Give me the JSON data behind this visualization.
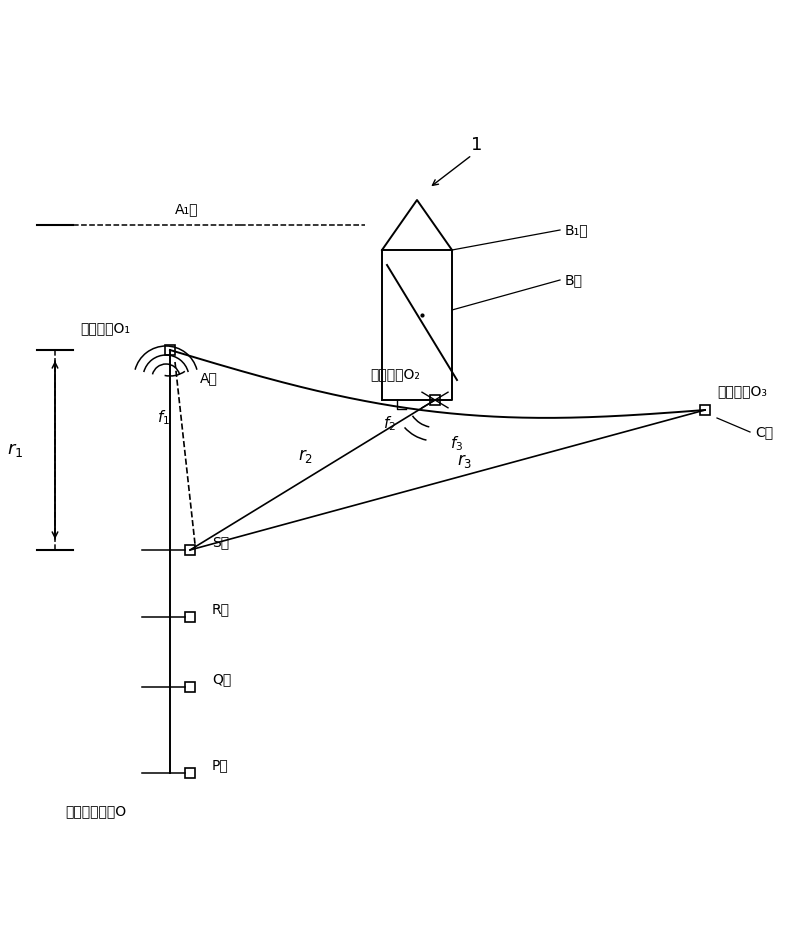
{
  "fig_width": 8.0,
  "fig_height": 9.35,
  "bg_color": "#ffffff",
  "label_1": "1",
  "label_B1": "B₁点",
  "label_B": "B点",
  "label_A1": "A₁点",
  "label_O1": "水面单元O₁",
  "label_O2": "水面单元O₂",
  "label_O3": "水面单元O₃",
  "label_A": "A点",
  "label_C": "C点",
  "label_f1": "$f_1$",
  "label_f2": "$f_2$",
  "label_f3": "$f_3$",
  "label_r1": "$r_1$",
  "label_r2": "$r_2$",
  "label_r3": "$r_3$",
  "label_S": "S点",
  "label_R": "R点",
  "label_Q": "Q点",
  "label_P": "P点",
  "label_O": "待测水下单元O"
}
